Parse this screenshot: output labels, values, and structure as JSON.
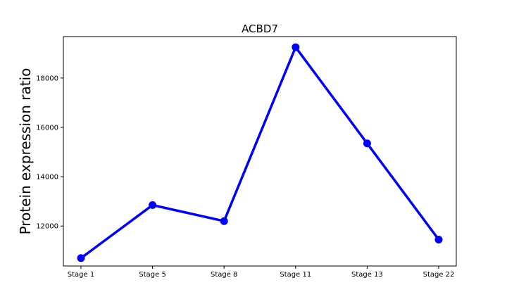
{
  "chart_data": {
    "type": "line",
    "title": "ACBD7",
    "xlabel": "",
    "ylabel": "Protein expression ratio",
    "categories": [
      "Stage 1",
      "Stage 5",
      "Stage 8",
      "Stage 11",
      "Stage 13",
      "Stage 22"
    ],
    "values": [
      10700,
      12850,
      12200,
      19250,
      15350,
      11450
    ],
    "ylim": [
      10380,
      19680
    ],
    "yticks": [
      12000,
      14000,
      16000,
      18000
    ],
    "ytick_labels": [
      "12000",
      "14000",
      "16000",
      "18000"
    ],
    "grid": false,
    "legend": false,
    "line_color": "#0000ff",
    "marker_color": "#0000ff"
  }
}
